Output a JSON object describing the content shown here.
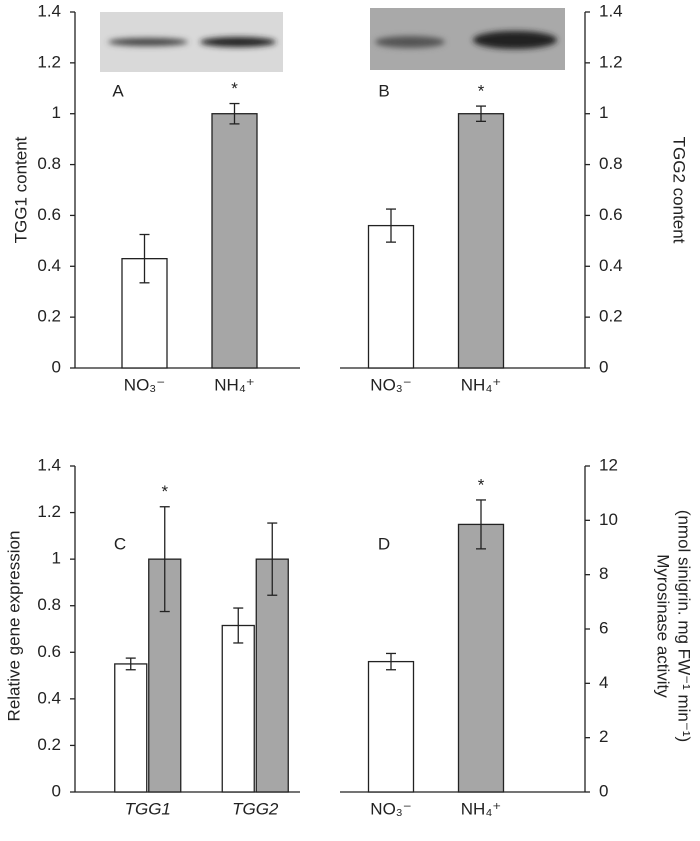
{
  "chart_data": [
    {
      "type": "bar",
      "panel_label": "A",
      "ylabel": "TGG1 content",
      "axis_side": "left",
      "categories": [
        "NO₃⁻",
        "NH₄⁺"
      ],
      "values": [
        0.43,
        1.0
      ],
      "errors": [
        0.095,
        0.04
      ],
      "colors": [
        "#ffffff",
        "#a6a6a6"
      ],
      "ylim": [
        0,
        1.4
      ],
      "yticks": [
        0,
        0.2,
        0.4,
        0.6,
        0.8,
        1,
        1.2,
        1.4
      ],
      "annotations": [
        {
          "label": "*",
          "category": 1
        }
      ]
    },
    {
      "type": "bar",
      "panel_label": "B",
      "ylabel": "TGG2  content",
      "axis_side": "right",
      "categories": [
        "NO₃⁻",
        "NH₄⁺"
      ],
      "values": [
        0.56,
        1.0
      ],
      "errors": [
        0.065,
        0.03
      ],
      "colors": [
        "#ffffff",
        "#a6a6a6"
      ],
      "ylim": [
        0,
        1.4
      ],
      "yticks": [
        0,
        0.2,
        0.4,
        0.6,
        0.8,
        1,
        1.2,
        1.4
      ],
      "annotations": [
        {
          "label": "*",
          "category": 1
        }
      ]
    },
    {
      "type": "grouped_bar",
      "panel_label": "C",
      "ylabel": "Relative gene expression",
      "axis_side": "left",
      "categories": [
        "TGG1",
        "TGG2"
      ],
      "category_style": "italic",
      "series": [
        {
          "color": "#ffffff",
          "values": [
            0.55,
            0.715
          ],
          "errors": [
            0.025,
            0.075
          ]
        },
        {
          "color": "#a6a6a6",
          "values": [
            1.0,
            1.0
          ],
          "errors": [
            0.225,
            0.155
          ]
        }
      ],
      "ylim": [
        0,
        1.4
      ],
      "yticks": [
        0,
        0.2,
        0.4,
        0.6,
        0.8,
        1,
        1.2,
        1.4
      ],
      "annotations": [
        {
          "label": "*",
          "category": 0,
          "series": 1
        }
      ]
    },
    {
      "type": "bar",
      "panel_label": "D",
      "ylabel": [
        "Myrosinase activity",
        "(nmol sinigrin. mg FW⁻¹ min⁻¹)"
      ],
      "axis_side": "right",
      "categories": [
        "NO₃⁻",
        "NH₄⁺"
      ],
      "values": [
        4.8,
        9.85
      ],
      "errors": [
        0.3,
        0.9
      ],
      "colors": [
        "#ffffff",
        "#a6a6a6"
      ],
      "ylim": [
        0,
        12
      ],
      "yticks": [
        0,
        2,
        4,
        6,
        8,
        10,
        12
      ],
      "annotations": [
        {
          "label": "*",
          "category": 1
        }
      ]
    }
  ]
}
